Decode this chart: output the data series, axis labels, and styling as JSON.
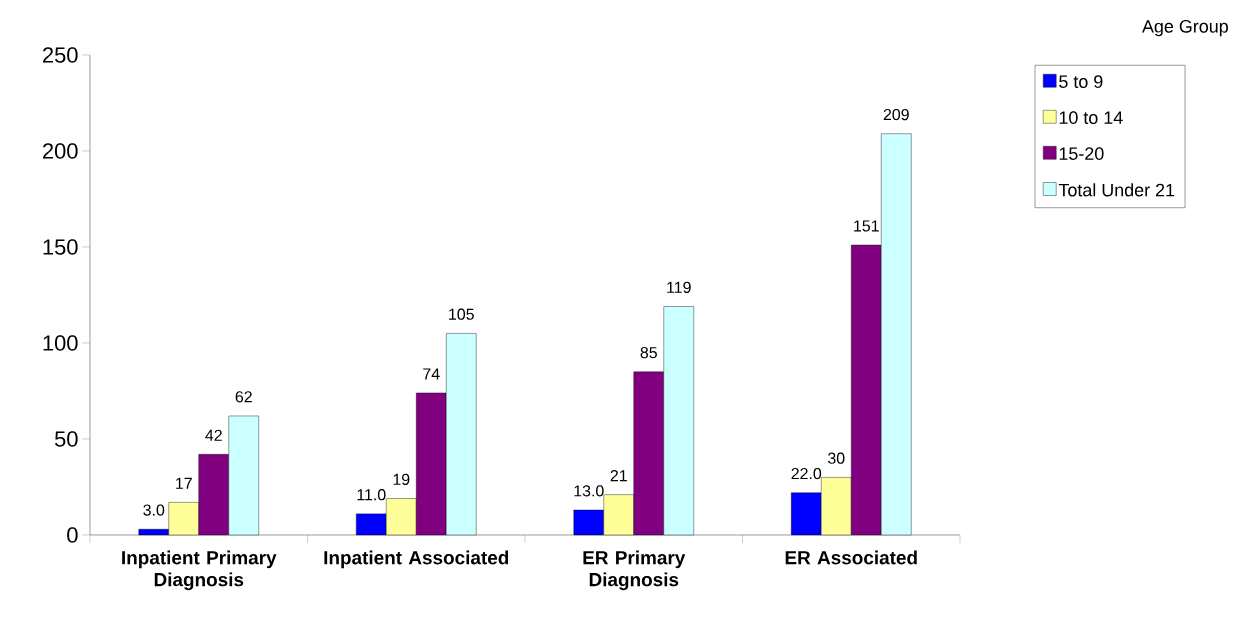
{
  "chart_data": {
    "type": "bar",
    "categories": [
      "Inpatient Primary Diagnosis",
      "Inpatient Associated",
      "ER Primary Diagnosis",
      "ER Associated"
    ],
    "legend_title": "Age Group",
    "legend": "top right",
    "grid": false,
    "ylim": [
      0,
      250
    ],
    "yticks": [
      0,
      50,
      100,
      150,
      200,
      250
    ],
    "series": [
      {
        "name": "5 to 9",
        "color": "#0000ff",
        "values": [
          3,
          11,
          13,
          22
        ],
        "value_labels": [
          "3.0",
          "11.0",
          "13.0",
          "22.0"
        ]
      },
      {
        "name": "10 to 14",
        "color": "#ffff99",
        "values": [
          17,
          19,
          21,
          30
        ],
        "value_labels": [
          "17",
          "19",
          "21",
          "30"
        ]
      },
      {
        "name": "15-20",
        "color": "#800080",
        "values": [
          42,
          74,
          85,
          151
        ],
        "value_labels": [
          "42",
          "74",
          "85",
          "151"
        ]
      },
      {
        "name": "Total Under 21",
        "color": "#ccffff",
        "values": [
          62,
          105,
          119,
          209
        ],
        "value_labels": [
          "62",
          "105",
          "119",
          "209"
        ]
      }
    ]
  }
}
